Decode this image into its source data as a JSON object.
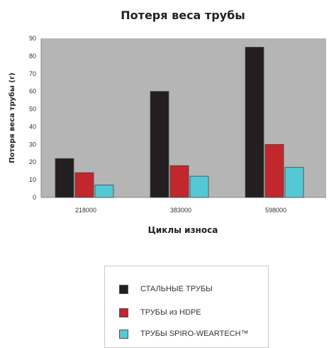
{
  "chart_data": {
    "type": "bar",
    "title": "Потеря веса трубы",
    "xlabel": "Циклы износа",
    "ylabel": "Потеря веса трубы (г)",
    "categories": [
      "218000",
      "383000",
      "598000"
    ],
    "ylim": [
      0,
      90
    ],
    "yticks": [
      0,
      10,
      20,
      30,
      40,
      50,
      60,
      70,
      80,
      90
    ],
    "grid": false,
    "legend_position": "bottom",
    "series": [
      {
        "name": "СТАЛЬНЫЕ ТРУБЫ",
        "values": [
          22,
          60,
          85
        ],
        "color": "#231f20"
      },
      {
        "name": "ТРУБЫ из HDPE",
        "values": [
          14,
          18,
          30
        ],
        "color": "#c1272d"
      },
      {
        "name": "ТРУБЫ SPIRO-WEARTECH™",
        "values": [
          7,
          12,
          17
        ],
        "color": "#55c8d6"
      }
    ],
    "plot_background": "#b5b5b5"
  }
}
